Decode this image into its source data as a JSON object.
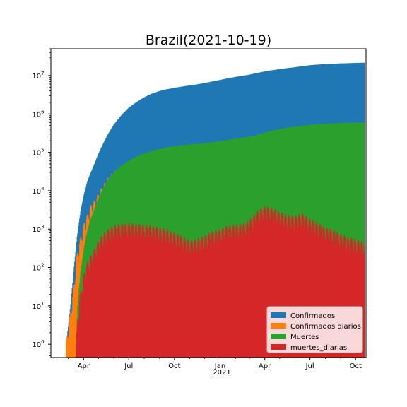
{
  "chart_data": {
    "type": "area",
    "title": "Brazil(2021-10-19)",
    "xlabel": "",
    "ylabel": "",
    "y_scale": "log",
    "ylim": [
      0.45,
      50000000
    ],
    "xlim": [
      "2020-01-26",
      "2021-10-22"
    ],
    "grid": false,
    "legend_position": "lower right",
    "x_ticks": [
      {
        "date": "2020-04-01",
        "label": "Apr"
      },
      {
        "date": "2020-07-01",
        "label": "Jul"
      },
      {
        "date": "2020-10-01",
        "label": "Oct"
      },
      {
        "date": "2021-01-01",
        "label": "Jan"
      },
      {
        "date": "2021-04-01",
        "label": "Apr"
      },
      {
        "date": "2021-07-01",
        "label": "Jul"
      },
      {
        "date": "2021-10-01",
        "label": "Oct"
      }
    ],
    "x_secondary_label": "2021",
    "y_ticks": [
      {
        "value": 1,
        "label": "10^0"
      },
      {
        "value": 10,
        "label": "10^1"
      },
      {
        "value": 100,
        "label": "10^2"
      },
      {
        "value": 1000,
        "label": "10^3"
      },
      {
        "value": 10000,
        "label": "10^4"
      },
      {
        "value": 100000,
        "label": "10^5"
      },
      {
        "value": 1000000,
        "label": "10^6"
      },
      {
        "value": 10000000,
        "label": "10^7"
      }
    ],
    "series": [
      {
        "name": "Confirmados",
        "color": "#1f77b4",
        "points": [
          [
            "2020-02-26",
            1
          ],
          [
            "2020-03-05",
            8
          ],
          [
            "2020-03-12",
            77
          ],
          [
            "2020-03-19",
            621
          ],
          [
            "2020-03-26",
            2915
          ],
          [
            "2020-04-02",
            8044
          ],
          [
            "2020-04-09",
            18145
          ],
          [
            "2020-04-16",
            30425
          ],
          [
            "2020-04-23",
            50036
          ],
          [
            "2020-05-01",
            91589
          ],
          [
            "2020-05-10",
            162699
          ],
          [
            "2020-05-20",
            291579
          ],
          [
            "2020-06-01",
            526447
          ],
          [
            "2020-06-15",
            888271
          ],
          [
            "2020-07-01",
            1448753
          ],
          [
            "2020-07-15",
            1966748
          ],
          [
            "2020-08-01",
            2707877
          ],
          [
            "2020-08-15",
            3317096
          ],
          [
            "2020-09-01",
            3950931
          ],
          [
            "2020-09-15",
            4382263
          ],
          [
            "2020-10-01",
            4810935
          ],
          [
            "2020-10-15",
            5140863
          ],
          [
            "2020-11-01",
            5545705
          ],
          [
            "2020-11-15",
            5863093
          ],
          [
            "2020-12-01",
            6386787
          ],
          [
            "2020-12-15",
            6970034
          ],
          [
            "2021-01-01",
            7700578
          ],
          [
            "2021-01-15",
            8393492
          ],
          [
            "2021-02-01",
            9229488
          ],
          [
            "2021-02-15",
            9866710
          ],
          [
            "2021-03-01",
            10589608
          ],
          [
            "2021-03-15",
            11519609
          ],
          [
            "2021-04-01",
            12839844
          ],
          [
            "2021-04-15",
            13746681
          ],
          [
            "2021-05-01",
            14725975
          ],
          [
            "2021-05-15",
            15586534
          ],
          [
            "2021-06-01",
            16545554
          ],
          [
            "2021-06-15",
            17533221
          ],
          [
            "2021-07-01",
            18622304
          ],
          [
            "2021-07-15",
            19262518
          ],
          [
            "2021-08-01",
            19953501
          ],
          [
            "2021-08-15",
            20364099
          ],
          [
            "2021-09-01",
            20830712
          ],
          [
            "2021-09-15",
            21034610
          ],
          [
            "2021-10-01",
            21427073
          ],
          [
            "2021-10-19",
            21664879
          ]
        ]
      },
      {
        "name": "Confirmados diarios",
        "color": "#ff7f0e",
        "points": [
          [
            "2020-02-26",
            1
          ],
          [
            "2020-03-05",
            5
          ],
          [
            "2020-03-12",
            25
          ],
          [
            "2020-03-19",
            200
          ],
          [
            "2020-03-26",
            500
          ],
          [
            "2020-04-02",
            1200
          ],
          [
            "2020-04-09",
            2000
          ],
          [
            "2020-04-16",
            3500
          ],
          [
            "2020-04-23",
            4500
          ],
          [
            "2020-05-01",
            7000
          ],
          [
            "2020-05-10",
            11000
          ],
          [
            "2020-05-20",
            17000
          ],
          [
            "2020-06-01",
            26000
          ],
          [
            "2020-06-15",
            32000
          ],
          [
            "2020-07-01",
            42000
          ],
          [
            "2020-07-15",
            45000
          ],
          [
            "2020-08-01",
            45000
          ],
          [
            "2020-08-15",
            40000
          ],
          [
            "2020-09-01",
            35000
          ],
          [
            "2020-09-15",
            32000
          ],
          [
            "2020-10-01",
            30000
          ],
          [
            "2020-10-15",
            25000
          ],
          [
            "2020-11-01",
            22000
          ],
          [
            "2020-11-15",
            30000
          ],
          [
            "2020-12-01",
            40000
          ],
          [
            "2020-12-15",
            45000
          ],
          [
            "2021-01-01",
            45000
          ],
          [
            "2021-01-15",
            55000
          ],
          [
            "2021-02-01",
            50000
          ],
          [
            "2021-02-15",
            48000
          ],
          [
            "2021-03-01",
            60000
          ],
          [
            "2021-03-15",
            75000
          ],
          [
            "2021-04-01",
            70000
          ],
          [
            "2021-04-15",
            65000
          ],
          [
            "2021-05-01",
            60000
          ],
          [
            "2021-05-15",
            65000
          ],
          [
            "2021-06-01",
            70000
          ],
          [
            "2021-06-15",
            70000
          ],
          [
            "2021-07-01",
            55000
          ],
          [
            "2021-07-15",
            45000
          ],
          [
            "2021-08-01",
            35000
          ],
          [
            "2021-08-15",
            28000
          ],
          [
            "2021-09-01",
            22000
          ],
          [
            "2021-09-15",
            15000
          ],
          [
            "2021-10-01",
            13000
          ],
          [
            "2021-10-19",
            8000
          ]
        ]
      },
      {
        "name": "Muertes",
        "color": "#2ca02c",
        "points": [
          [
            "2020-03-17",
            1
          ],
          [
            "2020-03-20",
            10
          ],
          [
            "2020-03-26",
            77
          ],
          [
            "2020-04-02",
            324
          ],
          [
            "2020-04-09",
            941
          ],
          [
            "2020-04-16",
            1924
          ],
          [
            "2020-04-23",
            3331
          ],
          [
            "2020-05-01",
            6329
          ],
          [
            "2020-05-10",
            11123
          ],
          [
            "2020-05-20",
            18859
          ],
          [
            "2020-06-01",
            29937
          ],
          [
            "2020-06-15",
            43959
          ],
          [
            "2020-07-01",
            59594
          ],
          [
            "2020-07-15",
            75366
          ],
          [
            "2020-08-01",
            93563
          ],
          [
            "2020-08-15",
            107232
          ],
          [
            "2020-09-01",
            121381
          ],
          [
            "2020-09-15",
            133119
          ],
          [
            "2020-10-01",
            144680
          ],
          [
            "2020-10-15",
            151747
          ],
          [
            "2020-11-01",
            160253
          ],
          [
            "2020-11-15",
            165658
          ],
          [
            "2020-12-01",
            173817
          ],
          [
            "2020-12-15",
            182799
          ],
          [
            "2021-01-01",
            195411
          ],
          [
            "2021-01-15",
            208246
          ],
          [
            "2021-02-01",
            225099
          ],
          [
            "2021-02-15",
            239245
          ],
          [
            "2021-03-01",
            255720
          ],
          [
            "2021-03-15",
            279286
          ],
          [
            "2021-04-01",
            325284
          ],
          [
            "2021-04-15",
            365444
          ],
          [
            "2021-05-01",
            404287
          ],
          [
            "2021-05-15",
            434715
          ],
          [
            "2021-06-01",
            462791
          ],
          [
            "2021-06-15",
            490696
          ],
          [
            "2021-07-01",
            520095
          ],
          [
            "2021-07-15",
            539050
          ],
          [
            "2021-08-01",
            556370
          ],
          [
            "2021-08-15",
            568788
          ],
          [
            "2021-09-01",
            581150
          ],
          [
            "2021-09-15",
            587066
          ],
          [
            "2021-10-01",
            597255
          ],
          [
            "2021-10-19",
            603465
          ]
        ]
      },
      {
        "name": "muertes_diarias",
        "color": "#d62728",
        "points": [
          [
            "2020-03-17",
            1
          ],
          [
            "2020-03-20",
            4
          ],
          [
            "2020-03-26",
            20
          ],
          [
            "2020-04-02",
            60
          ],
          [
            "2020-04-09",
            120
          ],
          [
            "2020-04-16",
            170
          ],
          [
            "2020-04-23",
            250
          ],
          [
            "2020-05-01",
            420
          ],
          [
            "2020-05-10",
            600
          ],
          [
            "2020-05-20",
            800
          ],
          [
            "2020-06-01",
            1000
          ],
          [
            "2020-06-15",
            1100
          ],
          [
            "2020-07-01",
            1150
          ],
          [
            "2020-07-15",
            1100
          ],
          [
            "2020-08-01",
            1050
          ],
          [
            "2020-08-15",
            1000
          ],
          [
            "2020-09-01",
            900
          ],
          [
            "2020-09-15",
            800
          ],
          [
            "2020-10-01",
            650
          ],
          [
            "2020-10-15",
            550
          ],
          [
            "2020-11-01",
            400
          ],
          [
            "2020-11-15",
            450
          ],
          [
            "2020-12-01",
            550
          ],
          [
            "2020-12-15",
            700
          ],
          [
            "2021-01-01",
            800
          ],
          [
            "2021-01-15",
            1000
          ],
          [
            "2021-02-01",
            1050
          ],
          [
            "2021-02-15",
            1100
          ],
          [
            "2021-03-01",
            1400
          ],
          [
            "2021-03-15",
            2300
          ],
          [
            "2021-04-01",
            3200
          ],
          [
            "2021-04-15",
            2900
          ],
          [
            "2021-05-01",
            2300
          ],
          [
            "2021-05-15",
            1900
          ],
          [
            "2021-06-01",
            1800
          ],
          [
            "2021-06-15",
            2100
          ],
          [
            "2021-07-01",
            1500
          ],
          [
            "2021-07-15",
            1200
          ],
          [
            "2021-08-01",
            900
          ],
          [
            "2021-08-15",
            800
          ],
          [
            "2021-09-01",
            600
          ],
          [
            "2021-09-15",
            500
          ],
          [
            "2021-10-01",
            450
          ],
          [
            "2021-10-19",
            350
          ]
        ]
      }
    ]
  }
}
